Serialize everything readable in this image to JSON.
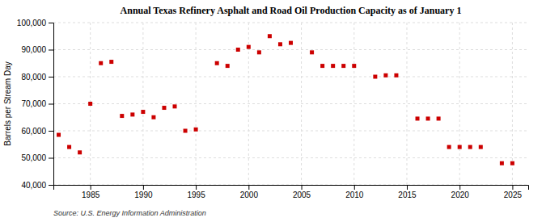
{
  "chart_data": {
    "type": "scatter",
    "title": "Annual Texas Refinery Asphalt and Road Oil Production Capacity as of January 1",
    "ylabel": "Barrels per Stream Day",
    "annotations": [
      "Source: U.S. Energy Information Administration"
    ],
    "x": [
      1982,
      1983,
      1984,
      1985,
      1986,
      1987,
      1988,
      1989,
      1990,
      1991,
      1992,
      1993,
      1994,
      1995,
      1997,
      1998,
      1999,
      2000,
      2001,
      2002,
      2003,
      2004,
      2006,
      2007,
      2008,
      2009,
      2010,
      2012,
      2013,
      2014,
      2016,
      2017,
      2018,
      2019,
      2020,
      2021,
      2022,
      2024,
      2025
    ],
    "values": [
      58500,
      54000,
      52000,
      70000,
      85000,
      85500,
      65500,
      66000,
      67000,
      65000,
      68500,
      69000,
      60000,
      60500,
      85000,
      84000,
      90000,
      91000,
      89000,
      95000,
      92000,
      92500,
      89000,
      84000,
      84000,
      84000,
      84000,
      80000,
      80500,
      80500,
      64500,
      64500,
      64500,
      54000,
      54000,
      54000,
      54000,
      48000,
      48000
    ],
    "color": "#cc0000",
    "marker": "square",
    "xlim": [
      1981.5,
      2026.5
    ],
    "xticks": [
      1985,
      1990,
      1995,
      2000,
      2005,
      2010,
      2015,
      2020,
      2025
    ],
    "ylim": [
      40000,
      100000
    ],
    "yticks": [
      {
        "value": 40000,
        "label": "40,000"
      },
      {
        "value": 50000,
        "label": "50,000"
      },
      {
        "value": 60000,
        "label": "60,000"
      },
      {
        "value": 70000,
        "label": "70,000"
      },
      {
        "value": 80000,
        "label": "80,000"
      },
      {
        "value": 90000,
        "label": "90,000"
      },
      {
        "value": 100000,
        "label": "100,000"
      }
    ],
    "grid": true
  }
}
